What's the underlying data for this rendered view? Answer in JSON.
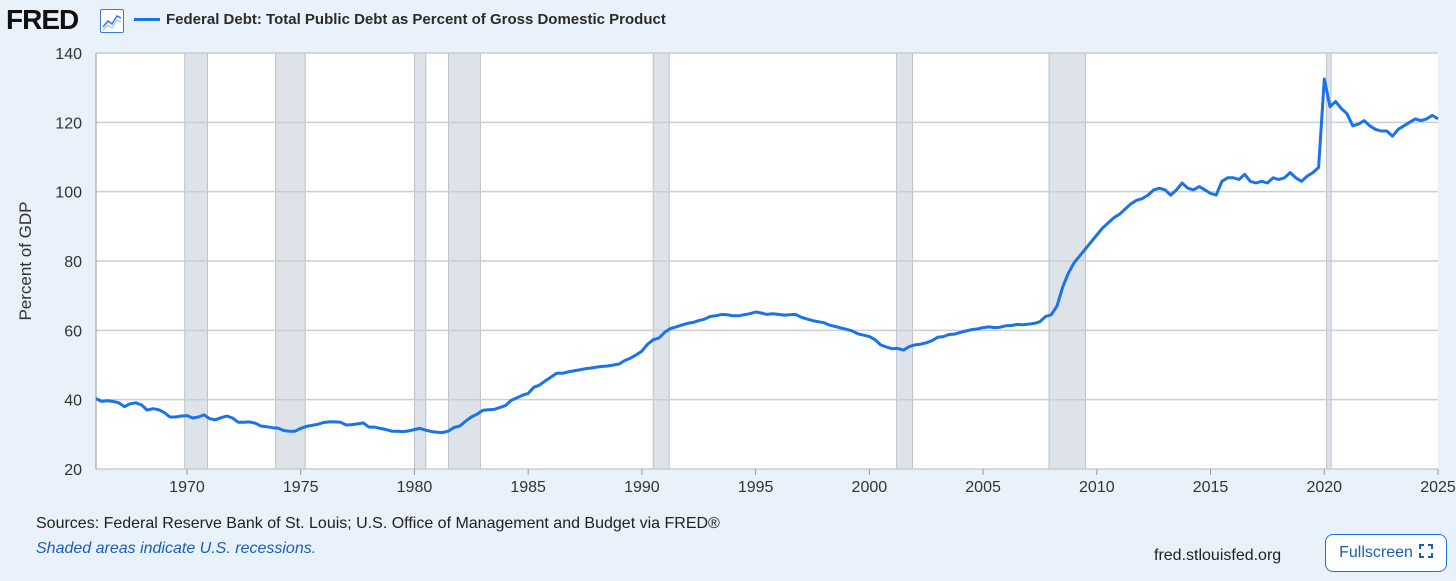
{
  "header": {
    "logo_text": "FRED",
    "logo_icon": "chart-line-icon",
    "series_title": "Federal Debt: Total Public Debt as Percent of Gross Domestic Product",
    "series_color": "#1a73e8"
  },
  "footer": {
    "sources": "Sources: Federal Reserve Bank of St. Louis; U.S. Office of Management and Budget via FRED®",
    "recession_note": "Shaded areas indicate U.S. recessions.",
    "site": "fred.stlouisfed.org",
    "fullscreen_label": "Fullscreen",
    "fullscreen_icon": "expand-icon"
  },
  "chart_data": {
    "type": "line",
    "title": "Federal Debt: Total Public Debt as Percent of Gross Domestic Product",
    "ylabel": "Percent of GDP",
    "xlabel": "",
    "xlim": [
      1966.0,
      2025.0
    ],
    "ylim": [
      20,
      140
    ],
    "yticks": [
      20,
      40,
      60,
      80,
      100,
      120,
      140
    ],
    "xticks": [
      1970,
      1975,
      1980,
      1985,
      1990,
      1995,
      2000,
      2005,
      2010,
      2015,
      2020,
      2025
    ],
    "grid": true,
    "line_color": "#1a73e8",
    "recession_color": "#dde3e9",
    "recessions": [
      [
        1969.9,
        1970.9
      ],
      [
        1973.9,
        1975.2
      ],
      [
        1980.0,
        1980.5
      ],
      [
        1981.5,
        1982.9
      ],
      [
        1990.5,
        1991.2
      ],
      [
        2001.2,
        2001.9
      ],
      [
        2007.9,
        2009.5
      ],
      [
        2020.1,
        2020.3
      ]
    ],
    "series": [
      {
        "name": "Federal Debt: Total Public Debt as Percent of Gross Domestic Product",
        "x": [
          1966.0,
          1966.25,
          1966.5,
          1966.75,
          1967.0,
          1967.25,
          1967.5,
          1967.75,
          1968.0,
          1968.25,
          1968.5,
          1968.75,
          1969.0,
          1969.25,
          1969.5,
          1969.75,
          1970.0,
          1970.25,
          1970.5,
          1970.75,
          1971.0,
          1971.25,
          1971.5,
          1971.75,
          1972.0,
          1972.25,
          1972.5,
          1972.75,
          1973.0,
          1973.25,
          1973.5,
          1973.75,
          1974.0,
          1974.25,
          1974.5,
          1974.75,
          1975.0,
          1975.25,
          1975.5,
          1975.75,
          1976.0,
          1976.25,
          1976.5,
          1976.75,
          1977.0,
          1977.25,
          1977.5,
          1977.75,
          1978.0,
          1978.25,
          1978.5,
          1978.75,
          1979.0,
          1979.25,
          1979.5,
          1979.75,
          1980.0,
          1980.25,
          1980.5,
          1980.75,
          1981.0,
          1981.25,
          1981.5,
          1981.75,
          1982.0,
          1982.25,
          1982.5,
          1982.75,
          1983.0,
          1983.25,
          1983.5,
          1983.75,
          1984.0,
          1984.25,
          1984.5,
          1984.75,
          1985.0,
          1985.25,
          1985.5,
          1985.75,
          1986.0,
          1986.25,
          1986.5,
          1986.75,
          1987.0,
          1987.25,
          1987.5,
          1987.75,
          1988.0,
          1988.25,
          1988.5,
          1988.75,
          1989.0,
          1989.25,
          1989.5,
          1989.75,
          1990.0,
          1990.25,
          1990.5,
          1990.75,
          1991.0,
          1991.25,
          1991.5,
          1991.75,
          1992.0,
          1992.25,
          1992.5,
          1992.75,
          1993.0,
          1993.25,
          1993.5,
          1993.75,
          1994.0,
          1994.25,
          1994.5,
          1994.75,
          1995.0,
          1995.25,
          1995.5,
          1995.75,
          1996.0,
          1996.25,
          1996.5,
          1996.75,
          1997.0,
          1997.25,
          1997.5,
          1997.75,
          1998.0,
          1998.25,
          1998.5,
          1998.75,
          1999.0,
          1999.25,
          1999.5,
          1999.75,
          2000.0,
          2000.25,
          2000.5,
          2000.75,
          2001.0,
          2001.25,
          2001.5,
          2001.75,
          2002.0,
          2002.25,
          2002.5,
          2002.75,
          2003.0,
          2003.25,
          2003.5,
          2003.75,
          2004.0,
          2004.25,
          2004.5,
          2004.75,
          2005.0,
          2005.25,
          2005.5,
          2005.75,
          2006.0,
          2006.25,
          2006.5,
          2006.75,
          2007.0,
          2007.25,
          2007.5,
          2007.75,
          2008.0,
          2008.25,
          2008.5,
          2008.75,
          2009.0,
          2009.25,
          2009.5,
          2009.75,
          2010.0,
          2010.25,
          2010.5,
          2010.75,
          2011.0,
          2011.25,
          2011.5,
          2011.75,
          2012.0,
          2012.25,
          2012.5,
          2012.75,
          2013.0,
          2013.25,
          2013.5,
          2013.75,
          2014.0,
          2014.25,
          2014.5,
          2014.75,
          2015.0,
          2015.25,
          2015.5,
          2015.75,
          2016.0,
          2016.25,
          2016.5,
          2016.75,
          2017.0,
          2017.25,
          2017.5,
          2017.75,
          2018.0,
          2018.25,
          2018.5,
          2018.75,
          2019.0,
          2019.25,
          2019.5,
          2019.75,
          2020.0,
          2020.25,
          2020.5,
          2020.75,
          2021.0,
          2021.25,
          2021.5,
          2021.75,
          2022.0,
          2022.25,
          2022.5,
          2022.75,
          2023.0,
          2023.25,
          2023.5,
          2023.75,
          2024.0,
          2024.25,
          2024.5,
          2024.75,
          2025.0
        ],
        "y": [
          40.3,
          39.5,
          39.7,
          39.5,
          39.1,
          38.0,
          38.8,
          39.1,
          38.5,
          37.0,
          37.4,
          37.1,
          36.3,
          35.0,
          35.0,
          35.3,
          35.4,
          34.7,
          35.0,
          35.6,
          34.5,
          34.2,
          34.8,
          35.3,
          34.7,
          33.5,
          33.5,
          33.6,
          33.2,
          32.4,
          32.2,
          31.9,
          31.8,
          31.1,
          30.9,
          30.9,
          31.7,
          32.3,
          32.6,
          32.9,
          33.4,
          33.6,
          33.6,
          33.5,
          32.7,
          32.8,
          33.0,
          33.3,
          32.1,
          32.1,
          31.7,
          31.4,
          30.9,
          30.9,
          30.8,
          31.0,
          31.4,
          31.7,
          31.2,
          30.8,
          30.6,
          30.5,
          31.0,
          32.0,
          32.4,
          33.8,
          35.0,
          35.8,
          36.9,
          37.1,
          37.2,
          37.7,
          38.3,
          39.8,
          40.5,
          41.3,
          41.8,
          43.6,
          44.2,
          45.4,
          46.5,
          47.6,
          47.6,
          48.0,
          48.3,
          48.6,
          48.9,
          49.1,
          49.4,
          49.6,
          49.7,
          50.0,
          50.3,
          51.3,
          52.0,
          52.9,
          54.0,
          56.0,
          57.3,
          57.8,
          59.4,
          60.5,
          61.0,
          61.5,
          62.0,
          62.3,
          62.8,
          63.2,
          64.0,
          64.2,
          64.6,
          64.5,
          64.2,
          64.2,
          64.5,
          64.8,
          65.3,
          65.0,
          64.6,
          64.8,
          64.6,
          64.4,
          64.5,
          64.6,
          63.8,
          63.3,
          62.8,
          62.5,
          62.2,
          61.5,
          61.1,
          60.7,
          60.3,
          59.8,
          59.0,
          58.6,
          58.2,
          57.3,
          55.8,
          55.2,
          54.7,
          54.8,
          54.3,
          55.3,
          55.8,
          56.0,
          56.4,
          57.0,
          58.0,
          58.2,
          58.8,
          58.9,
          59.4,
          59.8,
          60.2,
          60.4,
          60.8,
          61.0,
          60.8,
          60.9,
          61.3,
          61.4,
          61.7,
          61.6,
          61.8,
          62.0,
          62.5,
          64.0,
          64.5,
          67.0,
          72.5,
          76.5,
          79.5,
          81.5,
          83.5,
          85.5,
          87.5,
          89.5,
          91.0,
          92.5,
          93.5,
          95.0,
          96.5,
          97.5,
          98.0,
          99.0,
          100.5,
          101.0,
          100.5,
          99.0,
          100.5,
          102.5,
          101.0,
          100.5,
          101.5,
          100.5,
          99.5,
          99.0,
          103.0,
          104.0,
          104.0,
          103.5,
          105.0,
          103.0,
          102.5,
          103.0,
          102.5,
          104.0,
          103.5,
          104.0,
          105.5,
          104.0,
          103.0,
          104.5,
          105.5,
          107.0,
          132.5,
          124.5,
          126.0,
          124.0,
          122.5,
          119.0,
          119.5,
          120.5,
          119.0,
          118.0,
          117.5,
          117.5,
          116.0,
          118.0,
          119.0,
          120.0,
          121.0,
          120.5,
          121.0,
          122.0,
          121.0
        ]
      }
    ]
  }
}
